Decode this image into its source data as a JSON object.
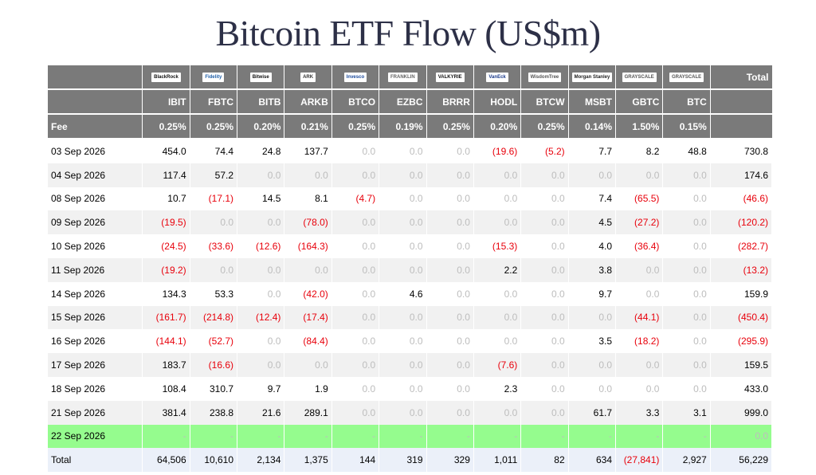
{
  "title": "Bitcoin ETF Flow (US$m)",
  "logos": [
    {
      "name": "blackrock-logo",
      "text": "BlackRock",
      "color": "#111111"
    },
    {
      "name": "fidelity-logo",
      "text": "Fidelity",
      "color": "#1f5fa8"
    },
    {
      "name": "bitwise-logo",
      "text": "Bitwise",
      "color": "#111111"
    },
    {
      "name": "ark-logo",
      "text": "ARK",
      "color": "#333333"
    },
    {
      "name": "invesco-logo",
      "text": "Invesco",
      "color": "#1a4a9c"
    },
    {
      "name": "franklin-logo",
      "text": "FRANKLIN",
      "color": "#666666"
    },
    {
      "name": "valkyrie-logo",
      "text": "VALKYRIE",
      "color": "#111111"
    },
    {
      "name": "vaneck-logo",
      "text": "VanEck",
      "color": "#1a3a8a"
    },
    {
      "name": "wisdomtree-logo",
      "text": "WisdomTree",
      "color": "#555555"
    },
    {
      "name": "morgan-stanley-logo",
      "text": "Morgan Stanley",
      "color": "#222222"
    },
    {
      "name": "grayscale-logo",
      "text": "GRAYSCALE",
      "color": "#555555"
    },
    {
      "name": "grayscale-mini-logo",
      "text": "GRAYSCALE",
      "color": "#555555"
    }
  ],
  "header": {
    "total_label": "Total",
    "tickers": [
      "IBIT",
      "FBTC",
      "BITB",
      "ARKB",
      "BTCO",
      "EZBC",
      "BRRR",
      "HODL",
      "BTCW",
      "MSBT",
      "GBTC",
      "BTC"
    ],
    "fee_label": "Fee",
    "fees": [
      "0.25%",
      "0.25%",
      "0.20%",
      "0.21%",
      "0.25%",
      "0.19%",
      "0.25%",
      "0.20%",
      "0.25%",
      "0.14%",
      "1.50%",
      "0.15%"
    ]
  },
  "rows": [
    {
      "date": "03 Sep 2026",
      "values": [
        "454.0",
        "74.4",
        "24.8",
        "137.7",
        "0.0",
        "0.0",
        "0.0",
        "(19.6)",
        "(5.2)",
        "7.7",
        "8.2",
        "48.8"
      ],
      "total": "730.8"
    },
    {
      "date": "04 Sep 2026",
      "values": [
        "117.4",
        "57.2",
        "0.0",
        "0.0",
        "0.0",
        "0.0",
        "0.0",
        "0.0",
        "0.0",
        "0.0",
        "0.0",
        "0.0"
      ],
      "total": "174.6"
    },
    {
      "date": "08 Sep 2026",
      "values": [
        "10.7",
        "(17.1)",
        "14.5",
        "8.1",
        "(4.7)",
        "0.0",
        "0.0",
        "0.0",
        "0.0",
        "7.4",
        "(65.5)",
        "0.0"
      ],
      "total": "(46.6)"
    },
    {
      "date": "09 Sep 2026",
      "values": [
        "(19.5)",
        "0.0",
        "0.0",
        "(78.0)",
        "0.0",
        "0.0",
        "0.0",
        "0.0",
        "0.0",
        "4.5",
        "(27.2)",
        "0.0"
      ],
      "total": "(120.2)"
    },
    {
      "date": "10 Sep 2026",
      "values": [
        "(24.5)",
        "(33.6)",
        "(12.6)",
        "(164.3)",
        "0.0",
        "0.0",
        "0.0",
        "(15.3)",
        "0.0",
        "4.0",
        "(36.4)",
        "0.0"
      ],
      "total": "(282.7)"
    },
    {
      "date": "11 Sep 2026",
      "values": [
        "(19.2)",
        "0.0",
        "0.0",
        "0.0",
        "0.0",
        "0.0",
        "0.0",
        "2.2",
        "0.0",
        "3.8",
        "0.0",
        "0.0"
      ],
      "total": "(13.2)"
    },
    {
      "date": "14 Sep 2026",
      "values": [
        "134.3",
        "53.3",
        "0.0",
        "(42.0)",
        "0.0",
        "4.6",
        "0.0",
        "0.0",
        "0.0",
        "9.7",
        "0.0",
        "0.0"
      ],
      "total": "159.9"
    },
    {
      "date": "15 Sep 2026",
      "values": [
        "(161.7)",
        "(214.8)",
        "(12.4)",
        "(17.4)",
        "0.0",
        "0.0",
        "0.0",
        "0.0",
        "0.0",
        "0.0",
        "(44.1)",
        "0.0"
      ],
      "total": "(450.4)"
    },
    {
      "date": "16 Sep 2026",
      "values": [
        "(144.1)",
        "(52.7)",
        "0.0",
        "(84.4)",
        "0.0",
        "0.0",
        "0.0",
        "0.0",
        "0.0",
        "3.5",
        "(18.2)",
        "0.0"
      ],
      "total": "(295.9)"
    },
    {
      "date": "17 Sep 2026",
      "values": [
        "183.7",
        "(16.6)",
        "0.0",
        "0.0",
        "0.0",
        "0.0",
        "0.0",
        "(7.6)",
        "0.0",
        "0.0",
        "0.0",
        "0.0"
      ],
      "total": "159.5"
    },
    {
      "date": "18 Sep 2026",
      "values": [
        "108.4",
        "310.7",
        "9.7",
        "1.9",
        "0.0",
        "0.0",
        "0.0",
        "2.3",
        "0.0",
        "0.0",
        "0.0",
        "0.0"
      ],
      "total": "433.0"
    },
    {
      "date": "21 Sep 2026",
      "values": [
        "381.4",
        "238.8",
        "21.6",
        "289.1",
        "0.0",
        "0.0",
        "0.0",
        "0.0",
        "0.0",
        "61.7",
        "3.3",
        "3.1"
      ],
      "total": "999.0"
    },
    {
      "date": "22 Sep 2026",
      "values": [
        "-",
        "-",
        "-",
        "-",
        "-",
        "-",
        "-",
        "-",
        "-",
        "-",
        "-",
        "-"
      ],
      "total": "0.0",
      "highlight": true
    }
  ],
  "totals": {
    "label": "Total",
    "values": [
      "64,506",
      "10,610",
      "2,134",
      "1,375",
      "144",
      "319",
      "329",
      "1,011",
      "82",
      "634",
      "(27,841)",
      "2,927"
    ],
    "total": "56,229"
  },
  "colors": {
    "header_bg": "#7a7a7a",
    "negative": "#e8000b",
    "zero": "#bdbdbd",
    "highlight_row": "#95fc8e",
    "total_row": "#ebf0f9",
    "title": "#2d3047"
  }
}
